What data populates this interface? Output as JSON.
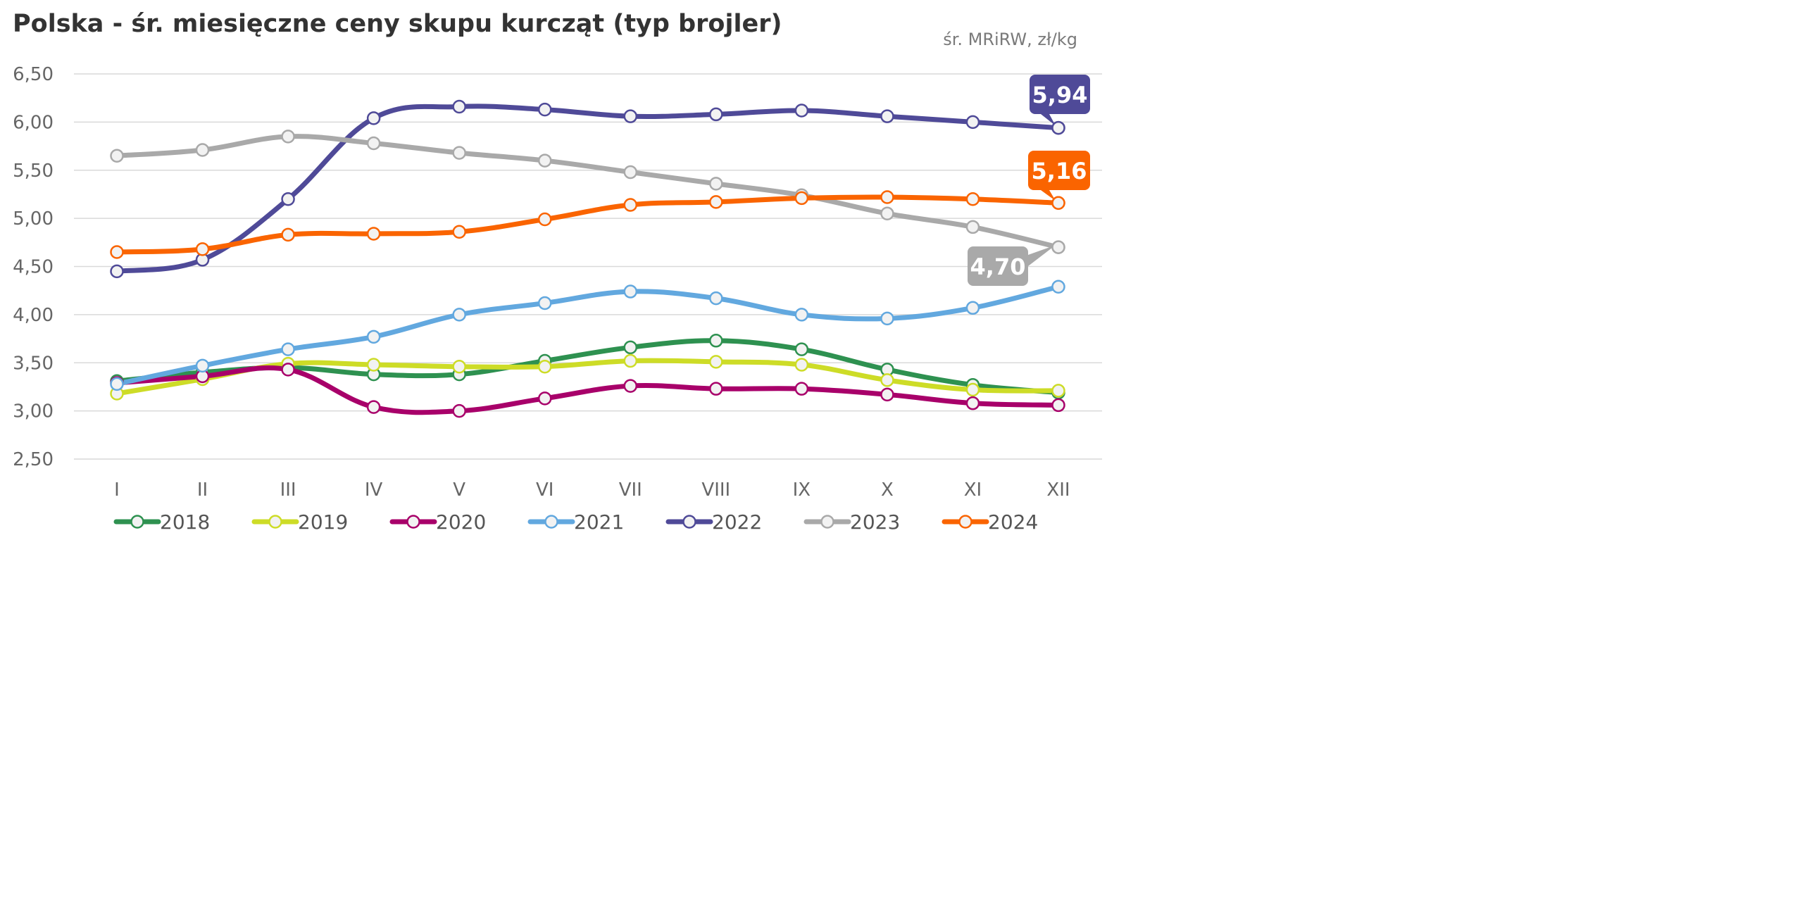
{
  "title": "Polska - śr. miesięczne ceny skupu kurcząt (typ brojler)",
  "unit_note": "śr. MRiRW, zł/kg",
  "chart_data": {
    "type": "line",
    "title": "Polska - śr. miesięczne ceny skupu kurcząt (typ brojler)",
    "ylabel": "",
    "xlabel": "",
    "ylim": [
      2.5,
      6.5
    ],
    "yticks": [
      "2,50",
      "3,00",
      "3,50",
      "4,00",
      "4,50",
      "5,00",
      "5,50",
      "6,00",
      "6,50"
    ],
    "grid": "horizontal",
    "legend_position": "bottom",
    "categories": [
      "I",
      "II",
      "III",
      "IV",
      "V",
      "VI",
      "VII",
      "VIII",
      "IX",
      "X",
      "XI",
      "XII"
    ],
    "series": [
      {
        "name": "2018",
        "color": "#2e9150",
        "values": [
          3.31,
          3.4,
          3.45,
          3.38,
          3.38,
          3.52,
          3.66,
          3.73,
          3.64,
          3.43,
          3.27,
          3.19
        ]
      },
      {
        "name": "2019",
        "color": "#cddc27",
        "values": [
          3.18,
          3.33,
          3.49,
          3.48,
          3.46,
          3.46,
          3.52,
          3.51,
          3.48,
          3.32,
          3.22,
          3.21
        ]
      },
      {
        "name": "2020",
        "color": "#a8006a",
        "values": [
          3.29,
          3.36,
          3.43,
          3.04,
          3.0,
          3.13,
          3.26,
          3.23,
          3.23,
          3.17,
          3.08,
          3.06
        ]
      },
      {
        "name": "2021",
        "color": "#62a8df",
        "values": [
          3.28,
          3.47,
          3.64,
          3.77,
          4.0,
          4.12,
          4.24,
          4.17,
          4.0,
          3.96,
          4.07,
          4.29
        ]
      },
      {
        "name": "2022",
        "color": "#4f4a98",
        "values": [
          4.45,
          4.57,
          5.2,
          6.04,
          6.16,
          6.13,
          6.06,
          6.08,
          6.12,
          6.06,
          6.0,
          5.94
        ]
      },
      {
        "name": "2023",
        "color": "#a9a9a9",
        "values": [
          5.65,
          5.71,
          5.85,
          5.78,
          5.68,
          5.6,
          5.48,
          5.36,
          5.24,
          5.05,
          4.91,
          4.7
        ]
      },
      {
        "name": "2024",
        "color": "#fa6400",
        "values": [
          4.65,
          4.68,
          4.83,
          4.84,
          4.86,
          4.99,
          5.14,
          5.17,
          5.21,
          5.22,
          5.2,
          5.16
        ]
      }
    ],
    "callouts": [
      {
        "series": "2022",
        "text": "5,94",
        "color": "#4f4a98"
      },
      {
        "series": "2024",
        "text": "5,16",
        "color": "#fa6400"
      },
      {
        "series": "2023",
        "text": "4,70",
        "color": "#a9a9a9"
      }
    ]
  }
}
